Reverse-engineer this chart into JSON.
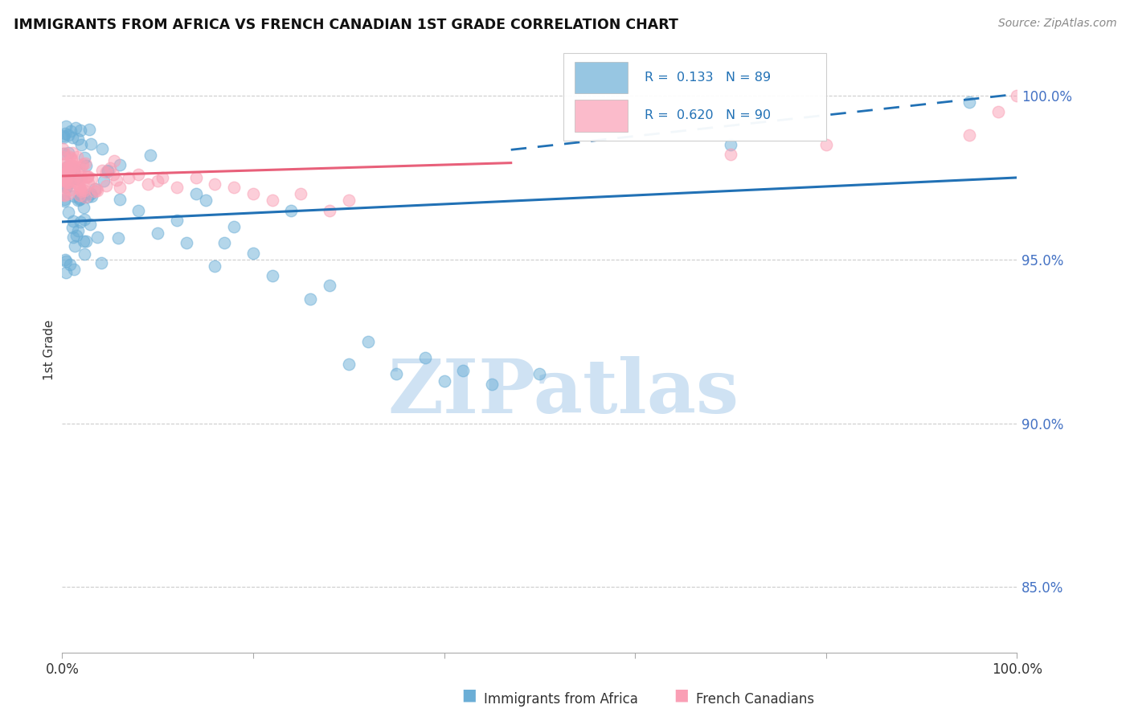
{
  "title": "IMMIGRANTS FROM AFRICA VS FRENCH CANADIAN 1ST GRADE CORRELATION CHART",
  "source": "Source: ZipAtlas.com",
  "ylabel": "1st Grade",
  "right_yticks": [
    85.0,
    90.0,
    95.0,
    100.0
  ],
  "right_yticklabels": [
    "85.0%",
    "90.0%",
    "95.0%",
    "100.0%"
  ],
  "xlim": [
    0.0,
    100.0
  ],
  "ylim": [
    83.0,
    101.5
  ],
  "legend_blue_label": "Immigrants from Africa",
  "legend_pink_label": "French Canadians",
  "R_blue": 0.133,
  "N_blue": 89,
  "R_pink": 0.62,
  "N_pink": 90,
  "blue_color": "#6baed6",
  "pink_color": "#fa9fb5",
  "blue_line_color": "#2171b5",
  "pink_line_color": "#e8607a",
  "background_color": "#ffffff",
  "watermark_text": "ZIPatlas",
  "watermark_color": "#cfe2f3",
  "blue_line_y0": 96.15,
  "blue_line_y1": 97.5,
  "pink_line_x0": 0.0,
  "pink_line_x1": 47.0,
  "pink_line_y0": 97.55,
  "pink_line_y1": 97.95,
  "dashed_x0": 47.0,
  "dashed_x1": 100.0,
  "dashed_y0": 98.35,
  "dashed_y1": 100.05
}
